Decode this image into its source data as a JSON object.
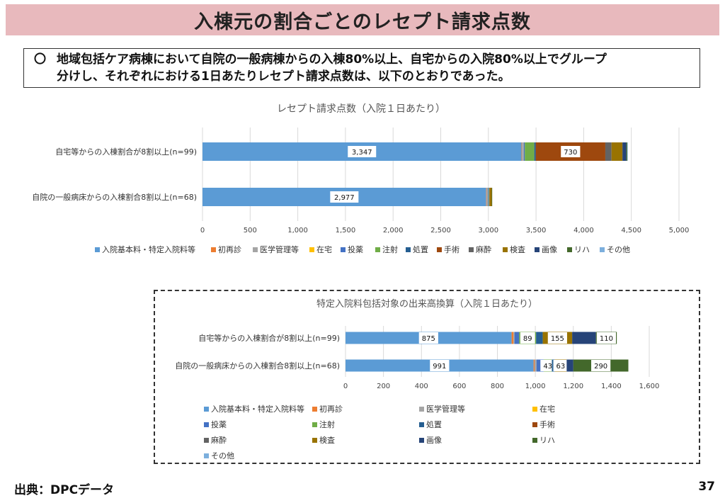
{
  "header": {
    "title": "入棟元の割合ごとのレセプト請求点数"
  },
  "summary": {
    "bullet": "〇",
    "line1": "地域包括ケア病棟において自院の一般病棟からの入棟80%以上、自宅からの入院80%以上でグループ",
    "line2": "分けし、それぞれにおける1日あたりレセプト請求点数は、以下のとおりであった。"
  },
  "footer": {
    "source": "出典：DPCデータ",
    "page": "37"
  },
  "colors": {
    "入院基本料・特定入院料等": "#5b9bd5",
    "初再診": "#ed7d31",
    "医学管理等": "#a5a5a5",
    "在宅": "#ffc000",
    "投薬": "#4472c4",
    "注射": "#70ad47",
    "処置": "#255e91",
    "手術": "#9e480e",
    "麻酔": "#636363",
    "検査": "#997300",
    "画像": "#264478",
    "リハ": "#43682b",
    "その他": "#7cafdd"
  },
  "chart_data": [
    {
      "type": "bar",
      "orientation": "horizontal",
      "stacked": true,
      "title": "レセプト請求点数（入院１日あたり）",
      "categories": [
        "自宅等からの入棟割合が8割以上(n=99)",
        "自院の一般病床からの入棟割合8割以上(n=68)"
      ],
      "xlim": [
        0,
        5000
      ],
      "xticks": [
        "0",
        "500",
        "1,000",
        "1,500",
        "2,000",
        "2,500",
        "3,000",
        "3,500",
        "4,000",
        "4,500",
        "5,000"
      ],
      "grid": true,
      "legend": "bottom",
      "series": [
        {
          "name": "入院基本料・特定入院料等",
          "values": [
            3347,
            2977
          ],
          "labels": [
            "3,347",
            "2,977"
          ]
        },
        {
          "name": "初再診",
          "values": [
            5,
            5
          ],
          "labels": [
            "",
            ""
          ]
        },
        {
          "name": "医学管理等",
          "values": [
            20,
            15
          ],
          "labels": [
            "",
            ""
          ]
        },
        {
          "name": "在宅",
          "values": [
            0,
            0
          ],
          "labels": [
            "",
            ""
          ]
        },
        {
          "name": "投薬",
          "values": [
            10,
            5
          ],
          "labels": [
            "",
            ""
          ]
        },
        {
          "name": "注射",
          "values": [
            100,
            5
          ],
          "labels": [
            "",
            ""
          ]
        },
        {
          "name": "処置",
          "values": [
            15,
            3
          ],
          "labels": [
            "",
            ""
          ]
        },
        {
          "name": "手術",
          "values": [
            730,
            5
          ],
          "labels": [
            "730",
            ""
          ]
        },
        {
          "name": "麻酔",
          "values": [
            65,
            0
          ],
          "labels": [
            "",
            ""
          ]
        },
        {
          "name": "検査",
          "values": [
            115,
            20
          ],
          "labels": [
            "",
            ""
          ]
        },
        {
          "name": "画像",
          "values": [
            40,
            0
          ],
          "labels": [
            "",
            ""
          ]
        },
        {
          "name": "リハ",
          "values": [
            10,
            5
          ],
          "labels": [
            "",
            ""
          ]
        },
        {
          "name": "その他",
          "values": [
            5,
            0
          ],
          "labels": [
            "",
            ""
          ]
        }
      ]
    },
    {
      "type": "bar",
      "orientation": "horizontal",
      "stacked": true,
      "title": "特定入院料包括対象の出来高換算（入院１日あたり）",
      "categories": [
        "自宅等からの入棟割合が8割以上(n=99)",
        "自院の一般病床からの入棟割合8割以上(n=68)"
      ],
      "xlim": [
        0,
        1600
      ],
      "xticks": [
        "0",
        "200",
        "400",
        "600",
        "800",
        "1,000",
        "1,200",
        "1,400",
        "1,600"
      ],
      "grid": true,
      "legend": "bottom",
      "series": [
        {
          "name": "入院基本料・特定入院料等",
          "values": [
            875,
            991
          ],
          "labels": [
            "875",
            "991"
          ]
        },
        {
          "name": "初再診",
          "values": [
            10,
            5
          ],
          "labels": [
            "",
            ""
          ]
        },
        {
          "name": "医学管理等",
          "values": [
            5,
            10
          ],
          "labels": [
            "",
            ""
          ]
        },
        {
          "name": "在宅",
          "values": [
            0,
            0
          ],
          "labels": [
            "",
            ""
          ]
        },
        {
          "name": "投薬",
          "values": [
            25,
            38
          ],
          "labels": [
            "",
            ""
          ]
        },
        {
          "name": "注射",
          "values": [
            89,
            43
          ],
          "labels": [
            "89",
            "43"
          ]
        },
        {
          "name": "処置",
          "values": [
            35,
            15
          ],
          "labels": [
            "",
            ""
          ]
        },
        {
          "name": "手術",
          "values": [
            0,
            0
          ],
          "labels": [
            "",
            ""
          ]
        },
        {
          "name": "麻酔",
          "values": [
            0,
            0
          ],
          "labels": [
            "",
            ""
          ]
        },
        {
          "name": "検査",
          "values": [
            155,
            63
          ],
          "labels": [
            "155",
            "63"
          ]
        },
        {
          "name": "画像",
          "values": [
            125,
            35
          ],
          "labels": [
            "",
            ""
          ]
        },
        {
          "name": "リハ",
          "values": [
            110,
            290
          ],
          "labels": [
            "110",
            "290"
          ]
        },
        {
          "name": "その他",
          "values": [
            0,
            0
          ],
          "labels": [
            "",
            ""
          ]
        }
      ]
    }
  ]
}
